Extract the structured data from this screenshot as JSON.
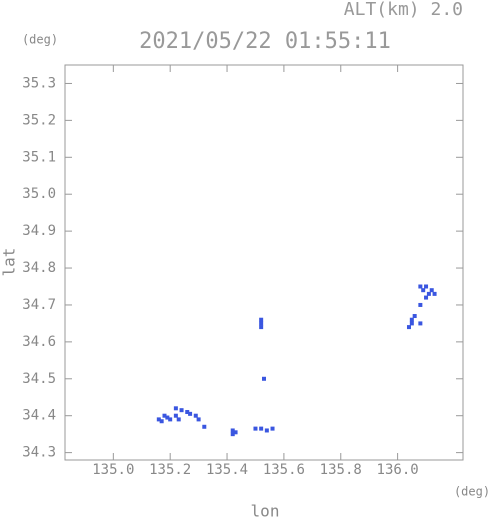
{
  "chart_data": {
    "type": "scatter",
    "title": "2021/05/22 01:55:11",
    "annotation": "ALT(km) 2.0",
    "y_unit": "(deg)",
    "x_unit": "(deg)",
    "xlabel": "lon",
    "ylabel": "lat",
    "xlim": [
      134.83,
      136.23
    ],
    "ylim": [
      34.28,
      35.35
    ],
    "xticks": [
      {
        "value": 135.0,
        "label": "135.0"
      },
      135.2,
      135.4,
      135.6,
      135.8,
      {
        "value": 136.0,
        "label": "136.0"
      }
    ],
    "yticks": [
      34.3,
      34.4,
      34.5,
      34.6,
      34.7,
      34.8,
      34.9,
      {
        "value": 35.0,
        "label": "35.0"
      },
      35.1,
      35.2,
      35.3
    ],
    "x": [
      135.17,
      135.16,
      135.18,
      135.19,
      135.2,
      135.22,
      135.23,
      135.22,
      135.24,
      135.26,
      135.27,
      135.29,
      135.3,
      135.32,
      135.42,
      135.43,
      135.42,
      135.5,
      135.52,
      135.54,
      135.56,
      135.52,
      135.52,
      135.52,
      135.53,
      136.04,
      136.05,
      136.05,
      136.06,
      136.08,
      136.08,
      136.09,
      136.1,
      136.11,
      136.12,
      136.13,
      136.1,
      136.08
    ],
    "series": [
      {
        "color": "#3a56e0",
        "values": [
          34.385,
          34.39,
          34.4,
          34.395,
          34.39,
          34.4,
          34.39,
          34.42,
          34.415,
          34.41,
          34.405,
          34.4,
          34.39,
          34.37,
          34.36,
          34.355,
          34.35,
          34.365,
          34.365,
          34.36,
          34.365,
          34.64,
          34.65,
          34.66,
          34.5,
          34.64,
          34.65,
          34.66,
          34.67,
          34.65,
          34.75,
          34.74,
          34.75,
          34.73,
          34.74,
          34.73,
          34.72,
          34.7
        ]
      }
    ]
  }
}
